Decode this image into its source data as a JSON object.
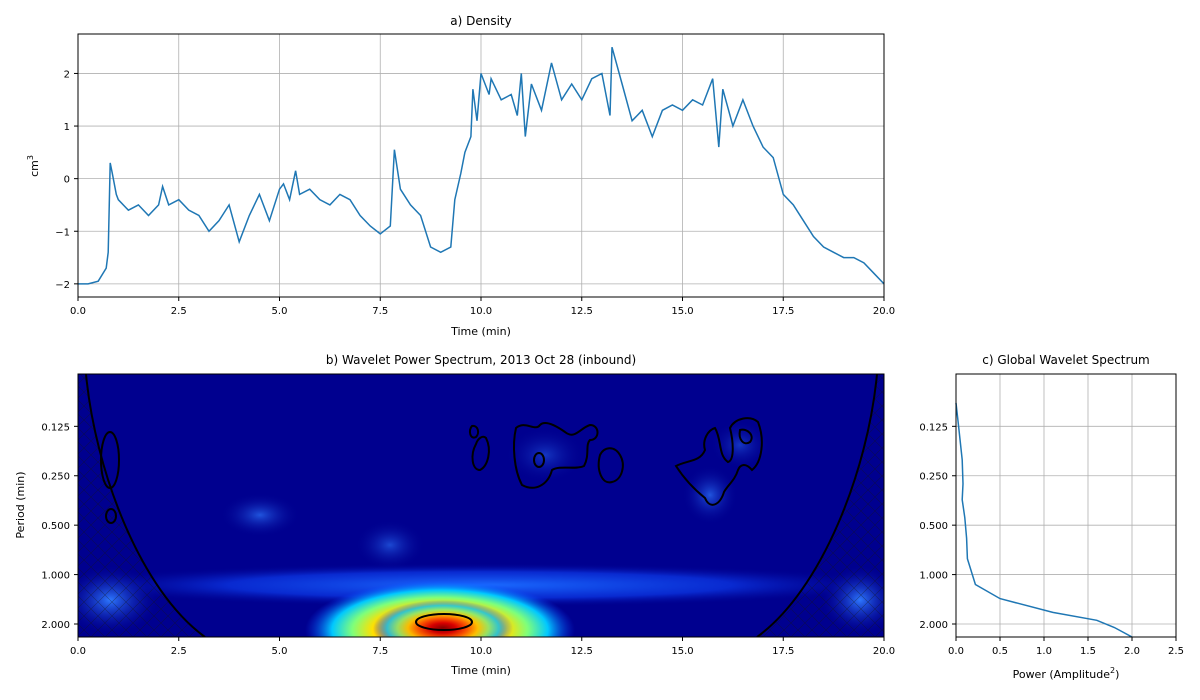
{
  "chart_data": [
    {
      "type": "line",
      "title": "a) Density",
      "xlabel": "Time (min)",
      "ylabel": "cm",
      "ylabel_superscript": "3",
      "xlim": [
        0,
        20
      ],
      "ylim": [
        -2.25,
        2.75
      ],
      "xticks": [
        "0.0",
        "2.5",
        "5.0",
        "7.5",
        "10.0",
        "12.5",
        "15.0",
        "17.5",
        "20.0"
      ],
      "yticks": [
        "−2",
        "−1",
        "0",
        "1",
        "2"
      ],
      "grid": true,
      "color": "#1f77b4",
      "x": [
        0,
        0.25,
        0.5,
        0.7,
        0.75,
        0.8,
        0.85,
        0.95,
        1.0,
        1.25,
        1.5,
        1.75,
        2.0,
        2.1,
        2.25,
        2.5,
        2.75,
        3.0,
        3.25,
        3.5,
        3.75,
        4.0,
        4.25,
        4.5,
        4.75,
        5.0,
        5.1,
        5.25,
        5.4,
        5.5,
        5.75,
        6.0,
        6.25,
        6.5,
        6.75,
        7.0,
        7.25,
        7.5,
        7.75,
        7.85,
        8.0,
        8.25,
        8.5,
        8.75,
        9.0,
        9.25,
        9.35,
        9.5,
        9.6,
        9.75,
        9.8,
        9.9,
        10.0,
        10.2,
        10.25,
        10.5,
        10.75,
        10.9,
        11.0,
        11.1,
        11.25,
        11.5,
        11.75,
        12.0,
        12.25,
        12.5,
        12.75,
        13.0,
        13.2,
        13.25,
        13.5,
        13.75,
        14.0,
        14.25,
        14.5,
        14.75,
        15.0,
        15.25,
        15.5,
        15.75,
        15.9,
        16.0,
        16.25,
        16.5,
        16.75,
        17.0,
        17.25,
        17.5,
        17.75,
        18.0,
        18.25,
        18.5,
        18.75,
        19.0,
        19.25,
        19.5,
        19.75,
        20.0
      ],
      "y": [
        -2.0,
        -2.0,
        -1.95,
        -1.7,
        -1.4,
        0.3,
        0.1,
        -0.3,
        -0.4,
        -0.6,
        -0.5,
        -0.7,
        -0.5,
        -0.15,
        -0.5,
        -0.4,
        -0.6,
        -0.7,
        -1.0,
        -0.8,
        -0.5,
        -1.2,
        -0.7,
        -0.3,
        -0.8,
        -0.2,
        -0.1,
        -0.4,
        0.15,
        -0.3,
        -0.2,
        -0.4,
        -0.5,
        -0.3,
        -0.4,
        -0.7,
        -0.9,
        -1.05,
        -0.9,
        0.55,
        -0.2,
        -0.5,
        -0.7,
        -1.3,
        -1.4,
        -1.3,
        -0.4,
        0.1,
        0.5,
        0.8,
        1.7,
        1.1,
        2.0,
        1.6,
        1.9,
        1.5,
        1.6,
        1.2,
        2.0,
        0.8,
        1.8,
        1.3,
        2.2,
        1.5,
        1.8,
        1.5,
        1.9,
        2.0,
        1.2,
        2.5,
        1.8,
        1.1,
        1.3,
        0.8,
        1.3,
        1.4,
        1.3,
        1.5,
        1.4,
        1.9,
        0.6,
        1.7,
        1.0,
        1.5,
        1.0,
        0.6,
        0.4,
        -0.3,
        -0.5,
        -0.8,
        -1.1,
        -1.3,
        -1.4,
        -1.5,
        -1.5,
        -1.6,
        -1.8,
        -2.0
      ]
    },
    {
      "type": "heatmap",
      "title": "b) Wavelet Power Spectrum, 2013 Oct 28 (inbound)",
      "xlabel": "Time (min)",
      "ylabel": "Period (min)",
      "xlim": [
        0,
        20
      ],
      "y_scale": "log2",
      "ylim": [
        2.4,
        0.06
      ],
      "xticks": [
        "0.0",
        "2.5",
        "5.0",
        "7.5",
        "10.0",
        "12.5",
        "15.0",
        "17.5",
        "20.0"
      ],
      "yticks": [
        "0.125",
        "0.250",
        "0.500",
        "1.000",
        "2.000"
      ],
      "colormap": "jet",
      "peak": {
        "time": 9.0,
        "period": 2.0
      },
      "cone_of_influence": true
    },
    {
      "type": "line",
      "title": "c) Global Wavelet Spectrum",
      "xlabel": "Power (Amplitude",
      "xlabel_superscript": "2",
      "xlabel_suffix": ")",
      "xlim": [
        0,
        2.5
      ],
      "y_scale": "log2",
      "ylim": [
        2.4,
        0.06
      ],
      "xticks": [
        "0.0",
        "0.5",
        "1.0",
        "1.5",
        "2.0",
        "2.5"
      ],
      "yticks": [
        "0.125",
        "0.250",
        "0.500",
        "1.000",
        "2.000"
      ],
      "grid": true,
      "color": "#1f77b4",
      "power": [
        0.0,
        0.03,
        0.07,
        0.08,
        0.07,
        0.1,
        0.12,
        0.13,
        0.22,
        0.5,
        1.1,
        1.6,
        1.8,
        2.0
      ],
      "period": [
        0.09,
        0.125,
        0.2,
        0.28,
        0.35,
        0.45,
        0.6,
        0.8,
        1.15,
        1.4,
        1.7,
        1.9,
        2.1,
        2.4
      ]
    }
  ]
}
